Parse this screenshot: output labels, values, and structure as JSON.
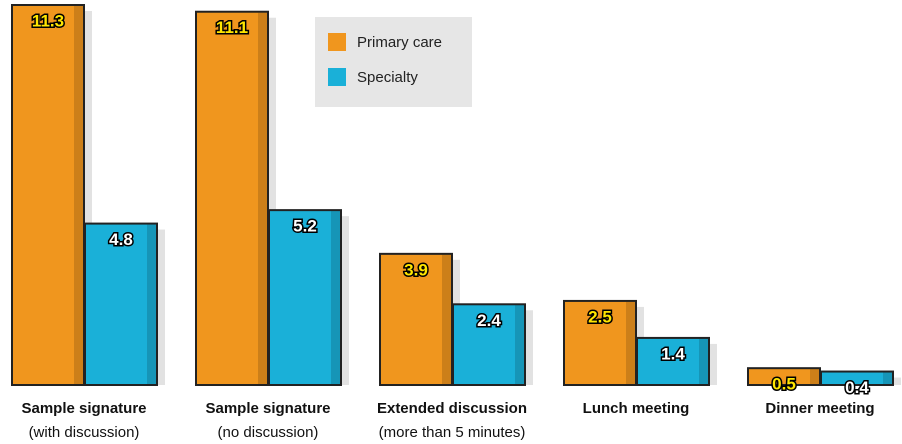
{
  "chart_data": {
    "type": "bar",
    "categories": [
      "Sample signature",
      "Sample signature",
      "Extended discussion",
      "Lunch meeting",
      "Dinner meeting"
    ],
    "category_notes": [
      "(with discussion)",
      "(no discussion)",
      "(more than 5 minutes)",
      null,
      null
    ],
    "series": [
      {
        "name": "Primary care",
        "color": "#f0961e",
        "values": [
          11.3,
          11.1,
          3.9,
          2.5,
          0.5
        ]
      },
      {
        "name": "Specialty",
        "color": "#1ab0d8",
        "values": [
          4.8,
          5.2,
          2.4,
          1.4,
          0.4
        ]
      }
    ],
    "legend": "top-center"
  }
}
